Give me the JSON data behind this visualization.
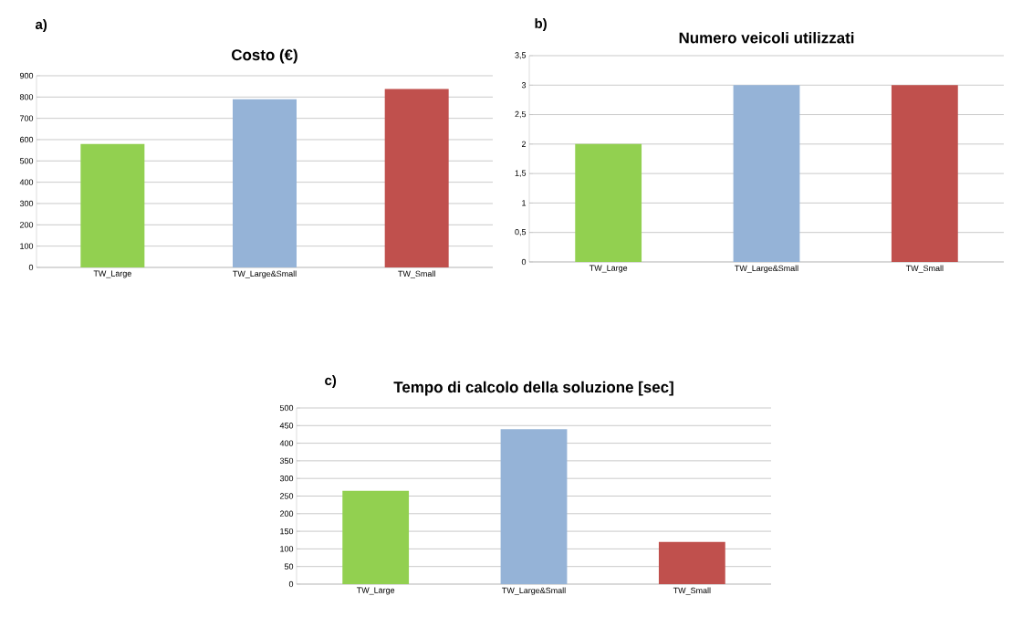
{
  "chart_data": [
    {
      "type": "bar",
      "title": "Costo (€)",
      "annotations": [
        "a)"
      ],
      "categories": [
        "TW_Large",
        "TW_Large&Small",
        "TW_Small"
      ],
      "values": [
        580,
        790,
        838
      ],
      "colors": [
        "#92d050",
        "#95b3d7",
        "#c0504d"
      ],
      "ylim": [
        0,
        900
      ],
      "yticks": [
        0,
        100,
        200,
        300,
        400,
        500,
        600,
        700,
        800,
        900
      ],
      "grid": "y"
    },
    {
      "type": "bar",
      "title": "Numero veicoli utilizzati",
      "annotations": [
        "b)"
      ],
      "categories": [
        "TW_Large",
        "TW_Large&Small",
        "TW_Small"
      ],
      "values": [
        2,
        3,
        3
      ],
      "colors": [
        "#92d050",
        "#95b3d7",
        "#c0504d"
      ],
      "ylim": [
        0,
        3.5
      ],
      "yticks": [
        0,
        {
          "value": 0.5,
          "label": "0,5"
        },
        1,
        {
          "value": 1.5,
          "label": "1,5"
        },
        2,
        {
          "value": 2.5,
          "label": "2,5"
        },
        3,
        {
          "value": 3.5,
          "label": "3,5"
        }
      ],
      "grid": "y"
    },
    {
      "type": "bar",
      "title": "Tempo di calcolo della soluzione [sec]",
      "annotations": [
        "c)"
      ],
      "categories": [
        "TW_Large",
        "TW_Large&Small",
        "TW_Small"
      ],
      "values": [
        265,
        440,
        120
      ],
      "colors": [
        "#92d050",
        "#95b3d7",
        "#c0504d"
      ],
      "ylim": [
        0,
        500
      ],
      "yticks": [
        0,
        50,
        100,
        150,
        200,
        250,
        300,
        350,
        400,
        450,
        500
      ],
      "grid": "y"
    }
  ]
}
